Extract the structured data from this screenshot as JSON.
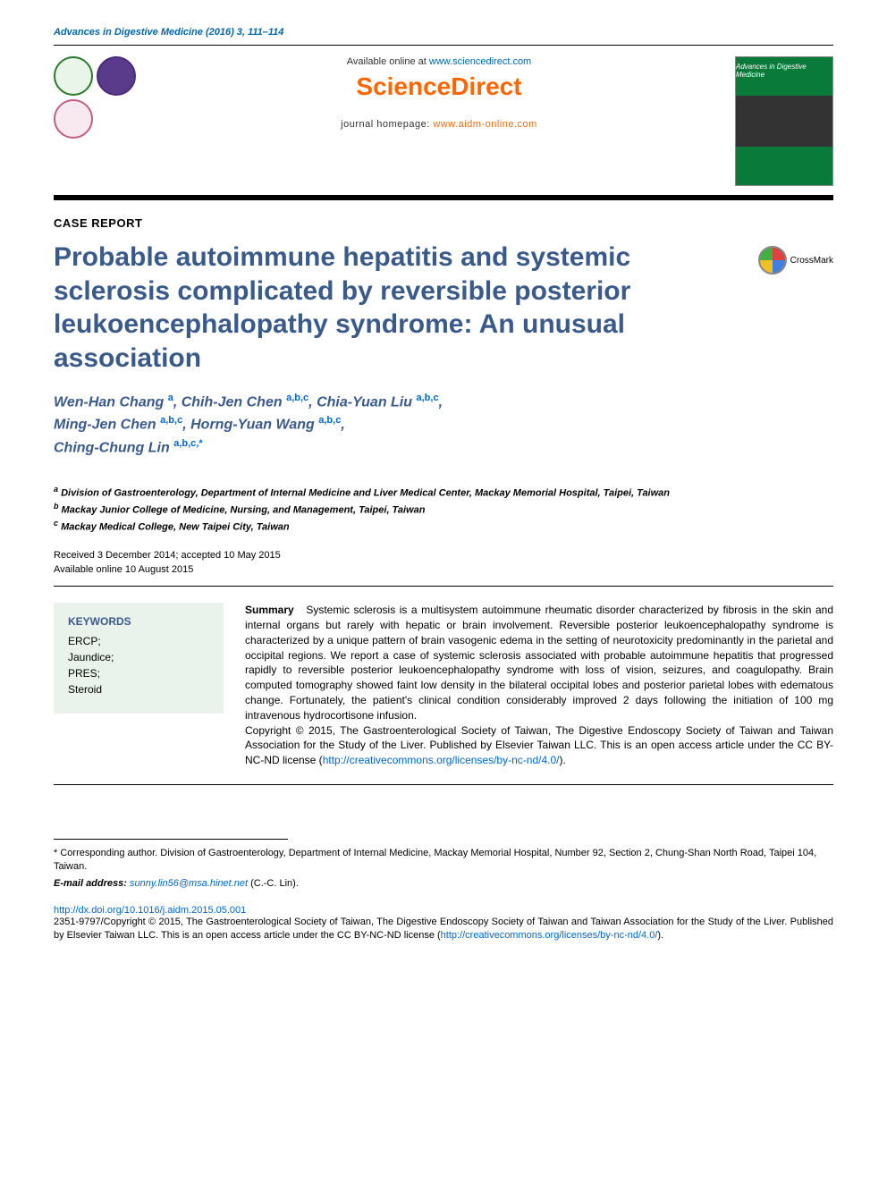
{
  "journal_ref": "Advances in Digestive Medicine (2016) 3, 111–114",
  "header": {
    "available_prefix": "Available online at ",
    "sd_url": "www.sciencedirect.com",
    "sd_logo": "ScienceDirect",
    "homepage_prefix": "journal homepage: ",
    "homepage_url": "www.aidm-online.com",
    "cover_title": "Advances in Digestive Medicine"
  },
  "article_type": "CASE REPORT",
  "title": "Probable autoimmune hepatitis and systemic sclerosis complicated by reversible posterior leukoencephalopathy syndrome: An unusual association",
  "crossmark_label": "CrossMark",
  "authors_html": "Wen-Han Chang <sup><a>a</a></sup>, Chih-Jen Chen <sup><a>a</a>,<a>b</a>,<a>c</a></sup>, Chia-Yuan Liu <sup><a>a</a>,<a>b</a>,<a>c</a></sup>,<br>Ming-Jen Chen <sup><a>a</a>,<a>b</a>,<a>c</a></sup>, Horng-Yuan Wang <sup><a>a</a>,<a>b</a>,<a>c</a></sup>,<br>Ching-Chung Lin <sup><a>a</a>,<a>b</a>,<a>c</a>,*</sup>",
  "affiliations": [
    {
      "marker": "a",
      "text": "Division of Gastroenterology, Department of Internal Medicine and Liver Medical Center, Mackay Memorial Hospital, Taipei, Taiwan"
    },
    {
      "marker": "b",
      "text": "Mackay Junior College of Medicine, Nursing, and Management, Taipei, Taiwan"
    },
    {
      "marker": "c",
      "text": "Mackay Medical College, New Taipei City, Taiwan"
    }
  ],
  "dates": {
    "received_accepted": "Received 3 December 2014; accepted 10 May 2015",
    "online": "Available online 10 August 2015"
  },
  "keywords": {
    "heading": "KEYWORDS",
    "items": [
      "ERCP;",
      "Jaundice;",
      "PRES;",
      "Steroid"
    ]
  },
  "summary": {
    "label": "Summary",
    "body": "Systemic sclerosis is a multisystem autoimmune rheumatic disorder characterized by fibrosis in the skin and internal organs but rarely with hepatic or brain involvement. Reversible posterior leukoencephalopathy syndrome is characterized by a unique pattern of brain vasogenic edema in the setting of neurotoxicity predominantly in the parietal and occipital regions. We report a case of systemic sclerosis associated with probable autoimmune hepatitis that progressed rapidly to reversible posterior leukoencephalopathy syndrome with loss of vision, seizures, and coagulopathy. Brain computed tomography showed faint low density in the bilateral occipital lobes and posterior parietal lobes with edematous change. Fortunately, the patient's clinical condition considerably improved 2 days following the initiation of 100 mg intravenous hydrocortisone infusion.",
    "copyright": "Copyright © 2015, The Gastroenterological Society of Taiwan, The Digestive Endoscopy Society of Taiwan and Taiwan Association for the Study of the Liver. Published by Elsevier Taiwan LLC. This is an open access article under the CC BY-NC-ND license (",
    "cc_url": "http://creativecommons.org/licenses/by-nc-nd/4.0/",
    "copyright_suffix": ")."
  },
  "corresponding": {
    "marker": "*",
    "text": "Corresponding author. Division of Gastroenterology, Department of Internal Medicine, Mackay Memorial Hospital, Number 92, Section 2, Chung-Shan North Road, Taipei 104, Taiwan.",
    "email_label": "E-mail address:",
    "email": "sunny.lin56@msa.hinet.net",
    "email_suffix": "(C.-C. Lin)."
  },
  "footer": {
    "doi": "http://dx.doi.org/10.1016/j.aidm.2015.05.001",
    "issn_copyright": "2351-9797/Copyright © 2015, The Gastroenterological Society of Taiwan, The Digestive Endoscopy Society of Taiwan and Taiwan Association for the Study of the Liver. Published by Elsevier Taiwan LLC. This is an open access article under the CC BY-NC-ND license (",
    "cc_url": "http://creativecommons.org/licenses/by-nc-nd/4.0/",
    "suffix": ")."
  },
  "colors": {
    "link_blue": "#0066cc",
    "title_blue": "#3a5a8a",
    "sd_orange": "#ff6600",
    "keywords_bg": "#eaf2ec"
  }
}
